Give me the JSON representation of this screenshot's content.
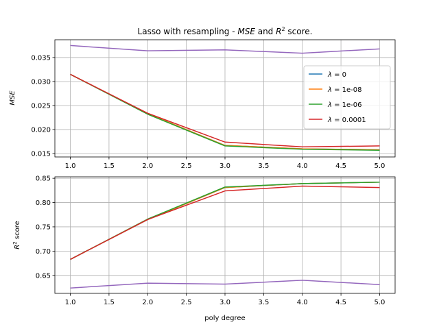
{
  "figure": {
    "title": "Lasso with resampling - MSE and R² score.",
    "title_parts": [
      "Lasso with resampling - ",
      "MSE",
      " and ",
      "R",
      "2",
      " score."
    ]
  },
  "legend": {
    "placement": "upper-right of top panel",
    "entries": [
      {
        "prefix": "λ",
        "value": " = 0",
        "color": "#1f77b4"
      },
      {
        "prefix": "λ",
        "value": " = 1e-08",
        "color": "#ff7f0e"
      },
      {
        "prefix": "λ",
        "value": " = 1e-06",
        "color": "#2ca02c"
      },
      {
        "prefix": "λ",
        "value": " = 0.0001",
        "color": "#d62728"
      }
    ]
  },
  "chart_data": [
    {
      "type": "line",
      "ylabel": "MSE",
      "xlabel": "",
      "grid": true,
      "x": [
        1.0,
        2.0,
        3.0,
        4.0,
        5.0
      ],
      "xlim": [
        0.8,
        5.2
      ],
      "ylim": [
        0.0143,
        0.0387
      ],
      "xticks": [
        1.0,
        1.5,
        2.0,
        2.5,
        3.0,
        3.5,
        4.0,
        4.5,
        5.0
      ],
      "xtick_labels": [
        "1.0",
        "1.5",
        "2.0",
        "2.5",
        "3.0",
        "3.5",
        "4.0",
        "4.5",
        "5.0"
      ],
      "yticks": [
        0.015,
        0.02,
        0.025,
        0.03,
        0.035
      ],
      "ytick_labels": [
        "0.015",
        "0.020",
        "0.025",
        "0.030",
        "0.035"
      ],
      "series": [
        {
          "color": "#1f77b4",
          "values": [
            0.0315,
            0.0233,
            0.0167,
            0.016,
            0.0158
          ]
        },
        {
          "color": "#ff7f0e",
          "values": [
            0.0315,
            0.0233,
            0.0167,
            0.016,
            0.0158
          ]
        },
        {
          "color": "#2ca02c",
          "values": [
            0.0315,
            0.0232,
            0.0166,
            0.0159,
            0.0157
          ]
        },
        {
          "color": "#d62728",
          "values": [
            0.0315,
            0.0234,
            0.0174,
            0.0164,
            0.0166
          ]
        },
        {
          "color": "#9467bd",
          "values": [
            0.0375,
            0.0364,
            0.0366,
            0.0359,
            0.0368
          ]
        }
      ]
    },
    {
      "type": "line",
      "ylabel": "R² score",
      "ylabel_parts": [
        "R",
        "2",
        " score"
      ],
      "xlabel": "poly degree",
      "grid": true,
      "x": [
        1.0,
        2.0,
        3.0,
        4.0,
        5.0
      ],
      "xlim": [
        0.8,
        5.2
      ],
      "ylim": [
        0.613,
        0.853
      ],
      "xticks": [
        1.0,
        1.5,
        2.0,
        2.5,
        3.0,
        3.5,
        4.0,
        4.5,
        5.0
      ],
      "xtick_labels": [
        "1.0",
        "1.5",
        "2.0",
        "2.5",
        "3.0",
        "3.5",
        "4.0",
        "4.5",
        "5.0"
      ],
      "yticks": [
        0.65,
        0.7,
        0.75,
        0.8,
        0.85
      ],
      "ytick_labels": [
        "0.65",
        "0.70",
        "0.75",
        "0.80",
        "0.85"
      ],
      "series": [
        {
          "color": "#1f77b4",
          "values": [
            0.683,
            0.765,
            0.831,
            0.839,
            0.842
          ]
        },
        {
          "color": "#ff7f0e",
          "values": [
            0.683,
            0.765,
            0.831,
            0.839,
            0.842
          ]
        },
        {
          "color": "#2ca02c",
          "values": [
            0.683,
            0.766,
            0.832,
            0.839,
            0.842
          ]
        },
        {
          "color": "#d62728",
          "values": [
            0.683,
            0.765,
            0.824,
            0.834,
            0.831
          ]
        },
        {
          "color": "#9467bd",
          "values": [
            0.624,
            0.634,
            0.632,
            0.64,
            0.631
          ]
        }
      ]
    }
  ]
}
